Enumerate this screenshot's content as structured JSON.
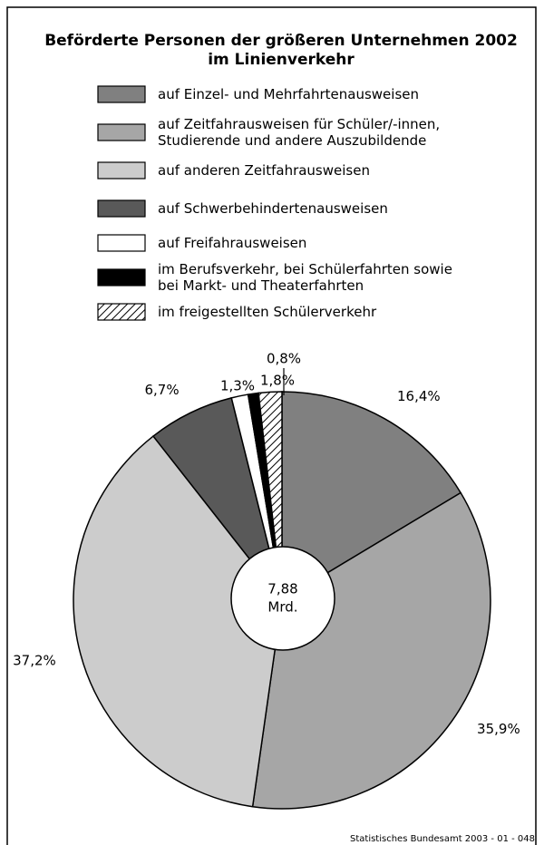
{
  "chart_data": {
    "type": "pie",
    "title": [
      "Beförderte Personen der größeren Unternehmen 2002",
      "im Linienverkehr"
    ],
    "categories": [
      "auf Einzel- und Mehrfahrtenausweisen",
      "auf Zeitfahrausweisen für Schüler/-innen, Studierende und andere Auszubildende",
      "auf anderen Zeitfahrausweisen",
      "auf Schwerbehindertenausweisen",
      "auf Freifahrausweisen",
      "im Berufsverkehr, bei Schülerfahrten sowie bei Markt- und Theaterfahrten",
      "im freigestellten Schülerverkehr"
    ],
    "values": [
      16.4,
      35.9,
      37.2,
      6.7,
      1.3,
      0.8,
      1.8
    ],
    "value_labels": [
      "16,4%",
      "35,9%",
      "37,2%",
      "6,7%",
      "1,3%",
      "0,8%",
      "1,8%"
    ],
    "colors": [
      "#808080",
      "#a6a6a6",
      "#cccccc",
      "#595959",
      "#ffffff",
      "#000000",
      "hatch"
    ],
    "center_label": [
      "7,88",
      "Mrd."
    ],
    "source": "Statistisches Bundesamt 2003 - 01 - 048"
  }
}
